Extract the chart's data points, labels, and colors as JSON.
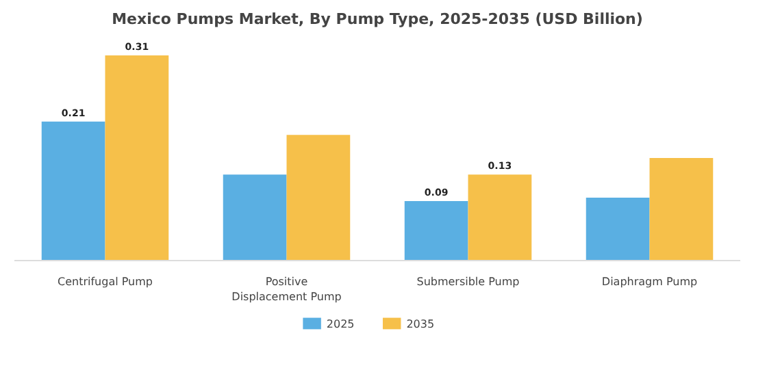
{
  "chart_data": {
    "type": "bar",
    "title": "Mexico Pumps Market, By Pump Type, 2025-2035 (USD Billion)",
    "categories": [
      "Centrifugal Pump",
      "Positive Displacement Pump",
      "Submersible Pump",
      "Diaphragm Pump"
    ],
    "series": [
      {
        "name": "2025",
        "color": "#5aafe2",
        "values": [
          0.21,
          0.13,
          0.09,
          0.095
        ],
        "value_labels": [
          "0.21",
          null,
          "0.09",
          null
        ]
      },
      {
        "name": "2035",
        "color": "#f6c04a",
        "values": [
          0.31,
          0.19,
          0.13,
          0.155
        ],
        "value_labels": [
          "0.31",
          null,
          "0.13",
          null
        ]
      }
    ],
    "legend": "bottom"
  }
}
